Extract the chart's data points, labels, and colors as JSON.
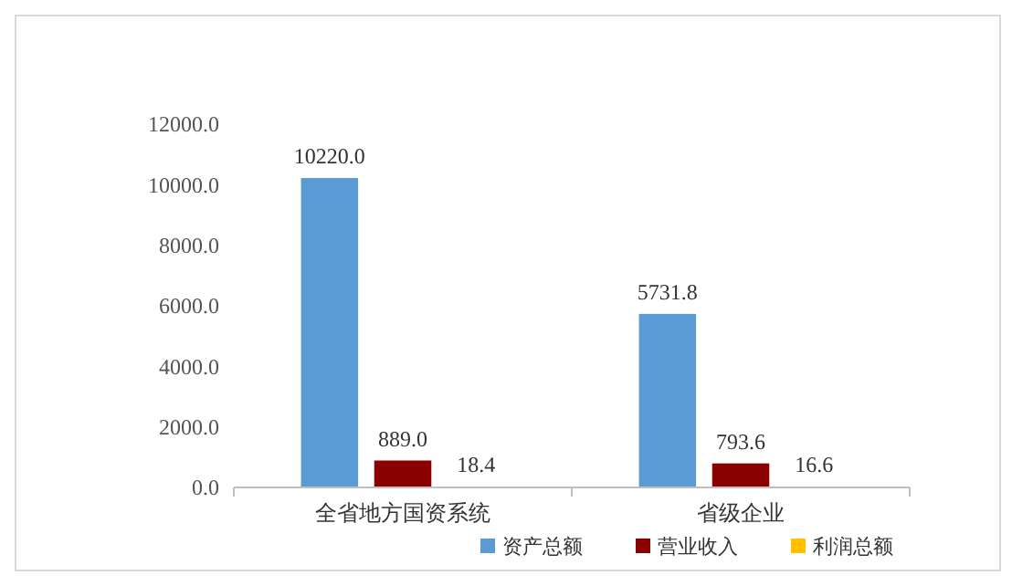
{
  "chart_data": {
    "type": "bar",
    "categories": [
      "全省地方国资系统",
      "省级企业"
    ],
    "series": [
      {
        "name": "资产总额",
        "color": "#5b9bd5",
        "values": [
          10220.0,
          5731.8
        ],
        "value_labels": [
          "10220.0",
          "5731.8"
        ]
      },
      {
        "name": "营业收入",
        "color": "#8b0000",
        "values": [
          889.0,
          793.6
        ],
        "value_labels": [
          "889.0",
          "793.6"
        ]
      },
      {
        "name": "利润总额",
        "color": "#ffc000",
        "values": [
          18.4,
          16.6
        ],
        "value_labels": [
          "18.4",
          "16.6"
        ]
      }
    ],
    "ylim": [
      0,
      12000
    ],
    "yticks": [
      {
        "value": 0,
        "label": "0.0"
      },
      {
        "value": 2000,
        "label": "2000.0"
      },
      {
        "value": 4000,
        "label": "4000.0"
      },
      {
        "value": 6000,
        "label": "6000.0"
      },
      {
        "value": 8000,
        "label": "8000.0"
      },
      {
        "value": 10000,
        "label": "10000.0"
      },
      {
        "value": 12000,
        "label": "12000.0"
      }
    ],
    "grid": false,
    "legend": "bottom"
  }
}
